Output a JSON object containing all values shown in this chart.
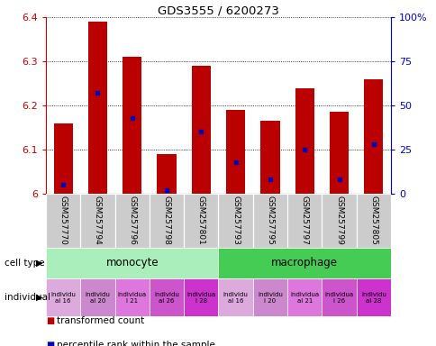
{
  "title": "GDS3555 / 6200273",
  "samples": [
    "GSM257770",
    "GSM257794",
    "GSM257796",
    "GSM257798",
    "GSM257801",
    "GSM257793",
    "GSM257795",
    "GSM257797",
    "GSM257799",
    "GSM257805"
  ],
  "bar_values": [
    6.16,
    6.39,
    6.31,
    6.09,
    6.29,
    6.19,
    6.165,
    6.24,
    6.185,
    6.26
  ],
  "percentile_values": [
    5,
    57,
    43,
    2,
    35,
    18,
    8,
    25,
    8,
    28
  ],
  "ylim": [
    6.0,
    6.4
  ],
  "yticks": [
    6.0,
    6.1,
    6.2,
    6.3,
    6.4
  ],
  "ytick_labels": [
    "6",
    "6.1",
    "6.2",
    "6.3",
    "6.4"
  ],
  "y2lim": [
    0,
    100
  ],
  "y2ticks": [
    0,
    25,
    50,
    75,
    100
  ],
  "y2ticklabels": [
    "0",
    "25",
    "50",
    "75",
    "100%"
  ],
  "bar_color": "#bb0000",
  "percentile_color": "#0000bb",
  "bar_width": 0.55,
  "mono_color": "#aaeebb",
  "macro_color": "#44cc55",
  "indiv_colors": [
    "#ddaadd",
    "#cc88cc",
    "#dd77dd",
    "#cc55cc",
    "#cc33cc",
    "#ddaadd",
    "#cc88cc",
    "#dd77dd",
    "#cc55cc",
    "#cc33cc"
  ],
  "xlabel_color": "#cc0000",
  "y2label_color": "#0000cc",
  "background_color": "#ffffff",
  "grid_color": "#555555",
  "sample_bg_color": "#cccccc",
  "indiv_text": [
    "individu\nal 16",
    "individu\nal 20",
    "individua\nl 21",
    "individu\nal 26",
    "individua\nl 28",
    "individu\nal 16",
    "individu\nl 20",
    "individua\nal 21",
    "individua\nl 26",
    "individu\nal 28"
  ]
}
